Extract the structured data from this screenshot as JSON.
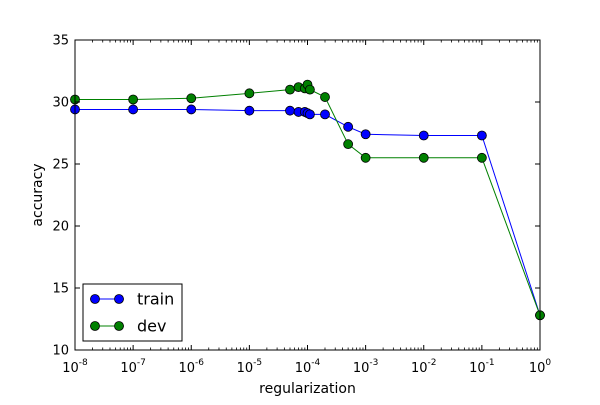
{
  "chart_data": {
    "type": "line",
    "xlabel": "regularization",
    "ylabel": "accuracy",
    "xscale": "log",
    "xlim": [
      1e-08,
      1
    ],
    "ylim": [
      10,
      35
    ],
    "xticks": [
      {
        "value": 1e-08,
        "base": "10",
        "exp": "-8"
      },
      {
        "value": 1e-07,
        "base": "10",
        "exp": "-7"
      },
      {
        "value": 1e-06,
        "base": "10",
        "exp": "-6"
      },
      {
        "value": 1e-05,
        "base": "10",
        "exp": "-5"
      },
      {
        "value": 0.0001,
        "base": "10",
        "exp": "-4"
      },
      {
        "value": 0.001,
        "base": "10",
        "exp": "-3"
      },
      {
        "value": 0.01,
        "base": "10",
        "exp": "-2"
      },
      {
        "value": 0.1,
        "base": "10",
        "exp": "-1"
      },
      {
        "value": 1,
        "base": "10",
        "exp": "0"
      }
    ],
    "yticks": [
      10,
      15,
      20,
      25,
      30,
      35
    ],
    "grid": false,
    "legend_position": "bottom-left",
    "series": [
      {
        "name": "train",
        "color": "#0000ff",
        "x": [
          1e-08,
          1e-07,
          1e-06,
          1e-05,
          5e-05,
          7e-05,
          9e-05,
          0.0001,
          0.00011,
          0.0002,
          0.0005,
          0.001,
          0.01,
          0.1,
          1
        ],
        "y": [
          29.4,
          29.4,
          29.4,
          29.3,
          29.3,
          29.2,
          29.2,
          29.1,
          29.0,
          29.0,
          28.0,
          27.4,
          27.3,
          27.3,
          12.8
        ]
      },
      {
        "name": "dev",
        "color": "#008000",
        "x": [
          1e-08,
          1e-07,
          1e-06,
          1e-05,
          5e-05,
          7e-05,
          9e-05,
          0.0001,
          0.00011,
          0.0002,
          0.0005,
          0.001,
          0.01,
          0.1,
          1
        ],
        "y": [
          30.2,
          30.2,
          30.3,
          30.7,
          31.0,
          31.2,
          31.1,
          31.4,
          31.0,
          30.4,
          26.6,
          25.5,
          25.5,
          25.5,
          12.8
        ]
      }
    ]
  }
}
